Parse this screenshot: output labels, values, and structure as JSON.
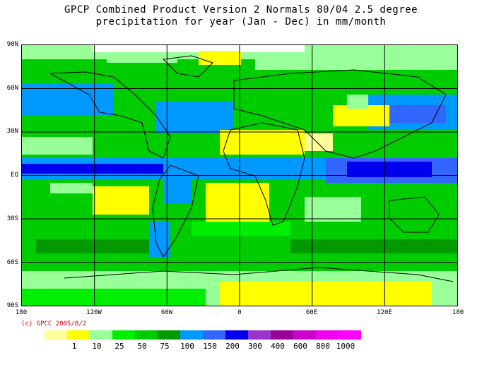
{
  "title": {
    "line1": "GPCP Combined Product Version 2  Normals 80/04 2.5 degree",
    "line2": "precipitation for year (Jan - Dec) in mm/month"
  },
  "lat_labels": [
    "90N",
    "60N",
    "30N",
    "EQ",
    "30S",
    "60S",
    "90S"
  ],
  "lon_labels": [
    "180",
    "120W",
    "60W",
    "0",
    "60E",
    "120E",
    "180"
  ],
  "credit": "(c) GPCC 2005/8/2",
  "legend": {
    "colors": [
      "#ffff99",
      "#ffff00",
      "#99ff99",
      "#00ee00",
      "#00cc00",
      "#009900",
      "#0099ff",
      "#3366ff",
      "#0000ee",
      "#9933cc",
      "#990099",
      "#cc00cc",
      "#ee00ee",
      "#ff00ff"
    ],
    "labels": [
      "1",
      "10",
      "25",
      "50",
      "75",
      "100",
      "150",
      "200",
      "300",
      "400",
      "600",
      "800",
      "1000"
    ]
  }
}
